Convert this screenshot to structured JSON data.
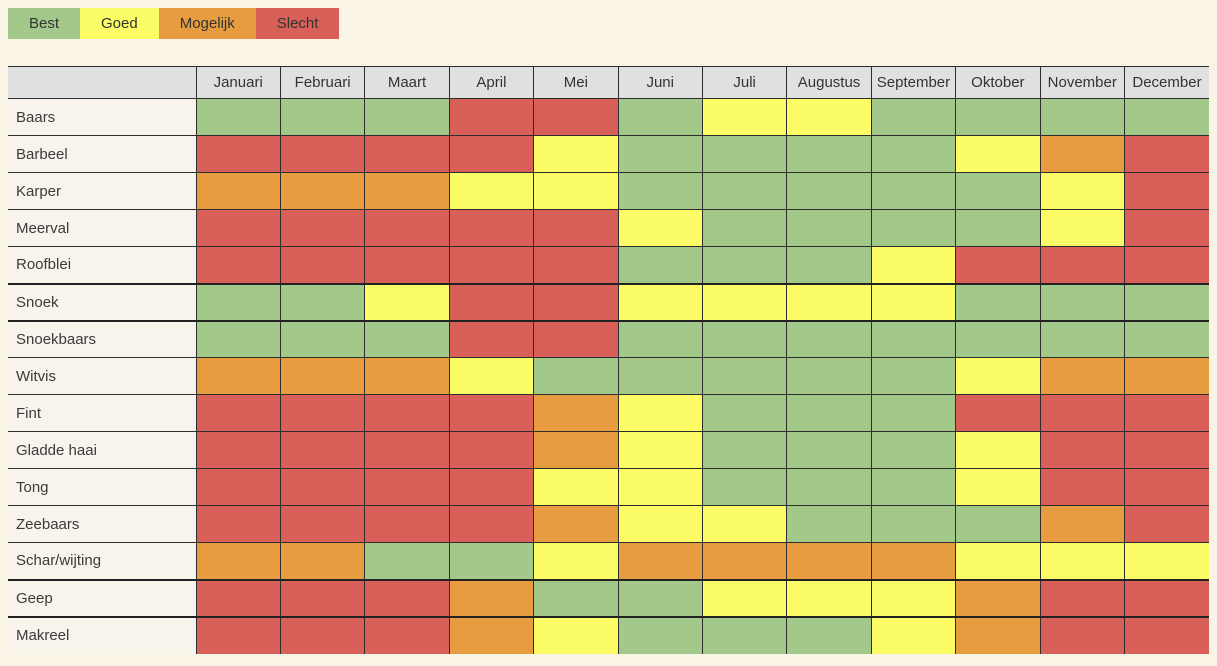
{
  "page": {
    "background": "#faf4e6",
    "border_color": "#2d2d2d"
  },
  "statuses": {
    "B": {
      "label": "Best",
      "color": "#a3c98a"
    },
    "G": {
      "label": "Goed",
      "color": "#fbfc66"
    },
    "M": {
      "label": "Mogelijk",
      "color": "#e79c40"
    },
    "S": {
      "label": "Slecht",
      "color": "#d96058"
    }
  },
  "legend": {
    "order": [
      "B",
      "G",
      "M",
      "S"
    ]
  },
  "table": {
    "corner_label": "",
    "header_bg": "#e0e0e0",
    "label_bg": "#f8f4ec",
    "months": [
      "Januari",
      "Februari",
      "Maart",
      "April",
      "Mei",
      "Juni",
      "Juli",
      "Augustus",
      "September",
      "Oktober",
      "November",
      "December"
    ],
    "rows": [
      {
        "name": "Baars",
        "thick": false,
        "cells": [
          "B",
          "B",
          "B",
          "S",
          "S",
          "B",
          "G",
          "G",
          "B",
          "B",
          "B",
          "B"
        ]
      },
      {
        "name": "Barbeel",
        "thick": false,
        "cells": [
          "S",
          "S",
          "S",
          "S",
          "G",
          "B",
          "B",
          "B",
          "B",
          "G",
          "M",
          "S"
        ]
      },
      {
        "name": "Karper",
        "thick": false,
        "cells": [
          "M",
          "M",
          "M",
          "G",
          "G",
          "B",
          "B",
          "B",
          "B",
          "B",
          "G",
          "S"
        ]
      },
      {
        "name": "Meerval",
        "thick": false,
        "cells": [
          "S",
          "S",
          "S",
          "S",
          "S",
          "G",
          "B",
          "B",
          "B",
          "B",
          "G",
          "S"
        ]
      },
      {
        "name": "Roofblei",
        "thick": false,
        "cells": [
          "S",
          "S",
          "S",
          "S",
          "S",
          "B",
          "B",
          "B",
          "G",
          "S",
          "S",
          "S"
        ]
      },
      {
        "name": "Snoek",
        "thick": true,
        "cells": [
          "B",
          "B",
          "G",
          "S",
          "S",
          "G",
          "G",
          "G",
          "G",
          "B",
          "B",
          "B"
        ]
      },
      {
        "name": "Snoekbaars",
        "thick": false,
        "cells": [
          "B",
          "B",
          "B",
          "S",
          "S",
          "B",
          "B",
          "B",
          "B",
          "B",
          "B",
          "B"
        ]
      },
      {
        "name": "Witvis",
        "thick": false,
        "cells": [
          "M",
          "M",
          "M",
          "G",
          "B",
          "B",
          "B",
          "B",
          "B",
          "G",
          "M",
          "M"
        ]
      },
      {
        "name": "Fint",
        "thick": false,
        "cells": [
          "S",
          "S",
          "S",
          "S",
          "M",
          "G",
          "B",
          "B",
          "B",
          "S",
          "S",
          "S"
        ]
      },
      {
        "name": "Gladde haai",
        "thick": false,
        "cells": [
          "S",
          "S",
          "S",
          "S",
          "M",
          "G",
          "B",
          "B",
          "B",
          "G",
          "S",
          "S"
        ]
      },
      {
        "name": "Tong",
        "thick": false,
        "cells": [
          "S",
          "S",
          "S",
          "S",
          "G",
          "G",
          "B",
          "B",
          "B",
          "G",
          "S",
          "S"
        ]
      },
      {
        "name": "Zeebaars",
        "thick": false,
        "cells": [
          "S",
          "S",
          "S",
          "S",
          "M",
          "G",
          "G",
          "B",
          "B",
          "B",
          "M",
          "S"
        ]
      },
      {
        "name": "Schar/wijting",
        "thick": false,
        "cells": [
          "M",
          "M",
          "B",
          "B",
          "G",
          "M",
          "M",
          "M",
          "M",
          "G",
          "G",
          "G"
        ]
      },
      {
        "name": "Geep",
        "thick": true,
        "cells": [
          "S",
          "S",
          "S",
          "M",
          "B",
          "B",
          "G",
          "G",
          "G",
          "M",
          "S",
          "S"
        ]
      },
      {
        "name": "Makreel",
        "thick": false,
        "cells": [
          "S",
          "S",
          "S",
          "M",
          "G",
          "B",
          "B",
          "B",
          "G",
          "M",
          "S",
          "S"
        ]
      }
    ]
  }
}
